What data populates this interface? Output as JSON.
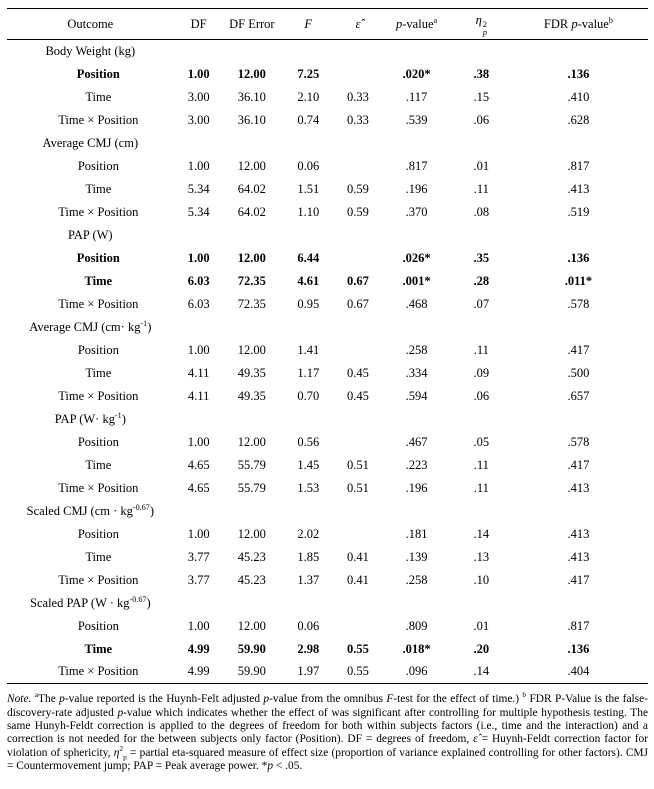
{
  "table": {
    "headers": {
      "outcome": "Outcome",
      "df": "DF",
      "df_error": "DF Error",
      "f": "F",
      "epsilon": "ε̂",
      "p_italic": "p",
      "p_rest": "-value",
      "p_sup": "a",
      "eta_base": "η",
      "eta_sup": "2",
      "eta_sub": "p",
      "fdr_prefix": "FDR ",
      "fdr_p": "p",
      "fdr_rest": "-value",
      "fdr_sup": "b"
    },
    "sections": [
      {
        "title": {
          "pre": "Body Weight (kg)",
          "sup": "",
          "post": ""
        },
        "rows": [
          {
            "label": "Position",
            "bold": true,
            "df": "1.00",
            "df_error": "12.00",
            "f": "7.25",
            "eps": "",
            "p": ".020*",
            "eta": ".38",
            "fdr": ".136"
          },
          {
            "label": "Time",
            "bold": false,
            "df": "3.00",
            "df_error": "36.10",
            "f": "2.10",
            "eps": "0.33",
            "p": ".117",
            "eta": ".15",
            "fdr": ".410"
          },
          {
            "label": "Time × Position",
            "bold": false,
            "df": "3.00",
            "df_error": "36.10",
            "f": "0.74",
            "eps": "0.33",
            "p": ".539",
            "eta": ".06",
            "fdr": ".628"
          }
        ]
      },
      {
        "title": {
          "pre": "Average CMJ (cm)",
          "sup": "",
          "post": ""
        },
        "rows": [
          {
            "label": "Position",
            "bold": false,
            "df": "1.00",
            "df_error": "12.00",
            "f": "0.06",
            "eps": "",
            "p": ".817",
            "eta": ".01",
            "fdr": ".817"
          },
          {
            "label": "Time",
            "bold": false,
            "df": "5.34",
            "df_error": "64.02",
            "f": "1.51",
            "eps": "0.59",
            "p": ".196",
            "eta": ".11",
            "fdr": ".413"
          },
          {
            "label": "Time × Position",
            "bold": false,
            "df": "5.34",
            "df_error": "64.02",
            "f": "1.10",
            "eps": "0.59",
            "p": ".370",
            "eta": ".08",
            "fdr": ".519"
          }
        ]
      },
      {
        "title": {
          "pre": "PAP (W)",
          "sup": "",
          "post": ""
        },
        "rows": [
          {
            "label": "Position",
            "bold": true,
            "df": "1.00",
            "df_error": "12.00",
            "f": "6.44",
            "eps": "",
            "p": ".026*",
            "eta": ".35",
            "fdr": ".136"
          },
          {
            "label": "Time",
            "bold": true,
            "df": "6.03",
            "df_error": "72.35",
            "f": "4.61",
            "eps": "0.67",
            "p": ".001*",
            "eta": ".28",
            "fdr": ".011*"
          },
          {
            "label": "Time × Position",
            "bold": false,
            "df": "6.03",
            "df_error": "72.35",
            "f": "0.95",
            "eps": "0.67",
            "p": ".468",
            "eta": ".07",
            "fdr": ".578"
          }
        ]
      },
      {
        "title": {
          "pre": "Average CMJ (cm· kg",
          "sup": "-1",
          "post": ")"
        },
        "rows": [
          {
            "label": "Position",
            "bold": false,
            "df": "1.00",
            "df_error": "12.00",
            "f": "1.41",
            "eps": "",
            "p": ".258",
            "eta": ".11",
            "fdr": ".417"
          },
          {
            "label": "Time",
            "bold": false,
            "df": "4.11",
            "df_error": "49.35",
            "f": "1.17",
            "eps": "0.45",
            "p": ".334",
            "eta": ".09",
            "fdr": ".500"
          },
          {
            "label": "Time × Position",
            "bold": false,
            "df": "4.11",
            "df_error": "49.35",
            "f": "0.70",
            "eps": "0.45",
            "p": ".594",
            "eta": ".06",
            "fdr": ".657"
          }
        ]
      },
      {
        "title": {
          "pre": "PAP (W· kg",
          "sup": "-1",
          "post": ")"
        },
        "rows": [
          {
            "label": "Position",
            "bold": false,
            "df": "1.00",
            "df_error": "12.00",
            "f": "0.56",
            "eps": "",
            "p": ".467",
            "eta": ".05",
            "fdr": ".578"
          },
          {
            "label": "Time",
            "bold": false,
            "df": "4.65",
            "df_error": "55.79",
            "f": "1.45",
            "eps": "0.51",
            "p": ".223",
            "eta": ".11",
            "fdr": ".417"
          },
          {
            "label": "Time × Position",
            "bold": false,
            "df": "4.65",
            "df_error": "55.79",
            "f": "1.53",
            "eps": "0.51",
            "p": ".196",
            "eta": ".11",
            "fdr": ".413"
          }
        ]
      },
      {
        "title": {
          "pre": "Scaled CMJ (cm · kg",
          "sup": "-0.67",
          "post": ")"
        },
        "rows": [
          {
            "label": "Position",
            "bold": false,
            "df": "1.00",
            "df_error": "12.00",
            "f": "2.02",
            "eps": "",
            "p": ".181",
            "eta": ".14",
            "fdr": ".413"
          },
          {
            "label": "Time",
            "bold": false,
            "df": "3.77",
            "df_error": "45.23",
            "f": "1.85",
            "eps": "0.41",
            "p": ".139",
            "eta": ".13",
            "fdr": ".413"
          },
          {
            "label": "Time × Position",
            "bold": false,
            "df": "3.77",
            "df_error": "45.23",
            "f": "1.37",
            "eps": "0.41",
            "p": ".258",
            "eta": ".10",
            "fdr": ".417"
          }
        ]
      },
      {
        "title": {
          "pre": "Scaled PAP (W · kg",
          "sup": "-0.67",
          "post": ")"
        },
        "rows": [
          {
            "label": "Position",
            "bold": false,
            "df": "1.00",
            "df_error": "12.00",
            "f": "0.06",
            "eps": "",
            "p": ".809",
            "eta": ".01",
            "fdr": ".817"
          },
          {
            "label": "Time",
            "bold": true,
            "df": "4.99",
            "df_error": "59.90",
            "f": "2.98",
            "eps": "0.55",
            "p": ".018*",
            "eta": ".20",
            "fdr": ".136"
          },
          {
            "label": "Time × Position",
            "bold": false,
            "df": "4.99",
            "df_error": "59.90",
            "f": "1.97",
            "eps": "0.55",
            "p": ".096",
            "eta": ".14",
            "fdr": ".404"
          }
        ]
      }
    ]
  },
  "note": {
    "segments": [
      {
        "t": "Note.",
        "i": true
      },
      {
        "t": " "
      },
      {
        "t": "a",
        "sup": true
      },
      {
        "t": "The "
      },
      {
        "t": "p",
        "i": true
      },
      {
        "t": "-value reported is the Huynh-Felt adjusted "
      },
      {
        "t": "p",
        "i": true
      },
      {
        "t": "-value from the omnibus "
      },
      {
        "t": "F",
        "i": true
      },
      {
        "t": "-test for the effect of time.) "
      },
      {
        "t": "b",
        "sup": true
      },
      {
        "t": " FDR P-Value is the false-discovery-rate adjusted "
      },
      {
        "t": "p",
        "i": true
      },
      {
        "t": "-value which indicates whether the effect of was significant after controlling for multiple hypothesis testing. The same Hunyh-Feldt correction is applied to the degrees of freedom for both within subjects factors (i.e., time and the interaction) and a correction is not needed for the between subjects only factor (Position). DF = degrees of freedom,  "
      },
      {
        "t": "ε̂",
        "i": true
      },
      {
        "t": " = Huynh-Feldt correction factor for violation of sphericity, "
      },
      {
        "t": "η",
        "i": true
      },
      {
        "t": "2",
        "sup": true
      },
      {
        "t": "p",
        "sub": true
      },
      {
        "t": " = partial eta-squared measure of effect size (proportion of variance explained controlling for other factors). CMJ = Countermovement jump; PAP = Peak average power. *"
      },
      {
        "t": "p",
        "i": true
      },
      {
        "t": " < .05."
      }
    ]
  }
}
